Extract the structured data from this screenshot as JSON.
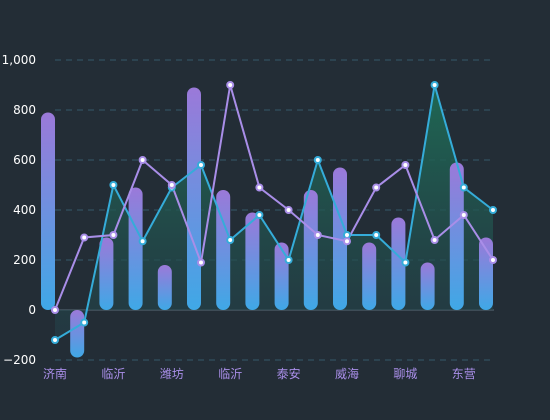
{
  "chart_data": {
    "type": "bar",
    "title": "",
    "xlabel": "",
    "ylabel": "",
    "ylim": [
      -200,
      1000
    ],
    "y_ticks": [
      -200,
      0,
      200,
      400,
      600,
      800,
      1000
    ],
    "y_tick_labels": [
      "−200",
      "0",
      "200",
      "400",
      "600",
      "800",
      "1,000"
    ],
    "categories": [
      "济南",
      "",
      "临沂",
      "",
      "潍坊",
      "",
      "临沂",
      "",
      "泰安",
      "",
      "威海",
      "",
      "聊城",
      "",
      "东营",
      ""
    ],
    "grid": true,
    "legend": "none",
    "series": [
      {
        "type": "bar",
        "values": [
          790,
          -190,
          290,
          490,
          180,
          890,
          480,
          390,
          270,
          480,
          570,
          270,
          370,
          190,
          590,
          290
        ]
      },
      {
        "type": "area-line",
        "values": [
          -120,
          -50,
          500,
          275,
          490,
          580,
          280,
          380,
          200,
          600,
          300,
          300,
          190,
          900,
          490,
          400
        ]
      },
      {
        "type": "line",
        "values": [
          0,
          290,
          300,
          600,
          500,
          190,
          900,
          490,
          400,
          300,
          275,
          490,
          580,
          280,
          380,
          200
        ]
      }
    ],
    "colors": {
      "background": "#232d36",
      "bar_top": "#9b79d9",
      "bar_bottom": "#3fa8e6",
      "line_cyan": "#35acd9",
      "line_purple": "#a98ee8",
      "area_fill": "#1f5a4f",
      "grid": "#35596a"
    }
  }
}
